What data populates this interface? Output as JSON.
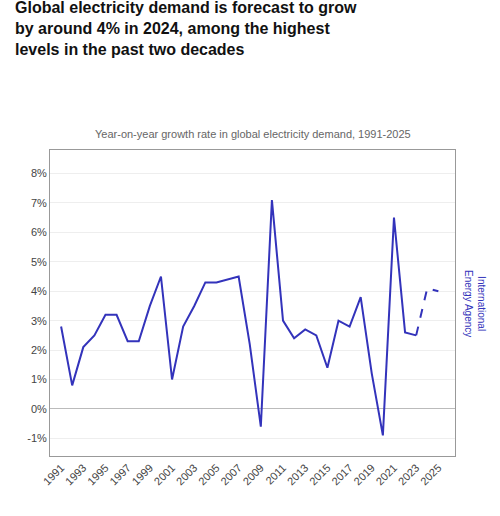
{
  "chart_data": {
    "type": "line",
    "title": "Global electricity demand is forecast to grow\nby around 4% in 2024, among the highest\nlevels in the past two decades",
    "subtitle": "Year-on-year growth rate in global electricity demand, 1991-2025",
    "annotations": [
      "International",
      "Energy Agency"
    ],
    "x": [
      1991,
      1992,
      1993,
      1994,
      1995,
      1996,
      1997,
      1998,
      1999,
      2000,
      2001,
      2002,
      2003,
      2004,
      2005,
      2006,
      2007,
      2008,
      2009,
      2010,
      2011,
      2012,
      2013,
      2014,
      2015,
      2016,
      2017,
      2018,
      2019,
      2020,
      2021,
      2022,
      2023,
      2024,
      2025
    ],
    "series": [
      {
        "color": "#3333bb",
        "line_style": "solid",
        "values": [
          2.8,
          0.8,
          2.1,
          2.5,
          3.2,
          3.2,
          2.3,
          2.3,
          3.5,
          4.5,
          1.0,
          2.8,
          3.5,
          4.3,
          4.3,
          4.4,
          4.5,
          2.2,
          -0.6,
          7.1,
          3.0,
          2.4,
          2.7,
          2.5,
          1.4,
          3.0,
          2.8,
          3.8,
          1.2,
          -0.9,
          6.5,
          2.6,
          2.5,
          null,
          null
        ]
      },
      {
        "color": "#3333bb",
        "line_style": "dashed",
        "values": [
          null,
          null,
          null,
          null,
          null,
          null,
          null,
          null,
          null,
          null,
          null,
          null,
          null,
          null,
          null,
          null,
          null,
          null,
          null,
          null,
          null,
          null,
          null,
          null,
          null,
          null,
          null,
          null,
          null,
          null,
          null,
          null,
          2.5,
          4.1,
          4.0
        ]
      }
    ],
    "xlim": [
      1990.0,
      2026.5
    ],
    "xticks": [
      1991,
      1993,
      1995,
      1997,
      1999,
      2001,
      2003,
      2005,
      2007,
      2009,
      2011,
      2013,
      2015,
      2017,
      2019,
      2021,
      2023,
      2025
    ],
    "ylim": [
      -1.6,
      8.8
    ],
    "yticks": [
      {
        "value": -1,
        "label": "-1%"
      },
      {
        "value": 0,
        "label": "0%"
      },
      {
        "value": 1,
        "label": "1%"
      },
      {
        "value": 2,
        "label": "2%"
      },
      {
        "value": 3,
        "label": "3%"
      },
      {
        "value": 4,
        "label": "4%"
      },
      {
        "value": 5,
        "label": "5%"
      },
      {
        "value": 6,
        "label": "6%"
      },
      {
        "value": 7,
        "label": "7%"
      },
      {
        "value": 8,
        "label": "8%"
      }
    ],
    "grid": "y"
  }
}
